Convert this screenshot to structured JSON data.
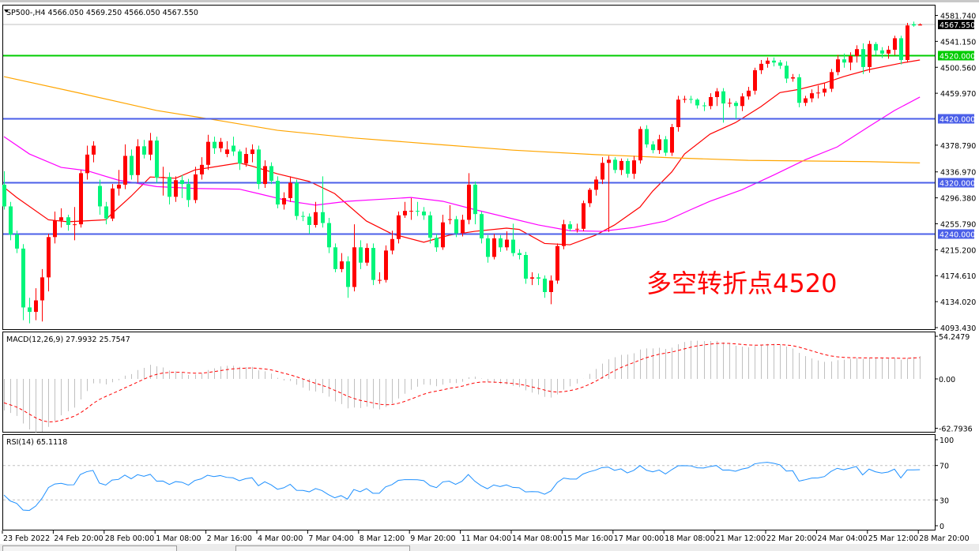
{
  "header": {
    "symbol_line": "SP500-,H4  4566.050 4569.250 4566.050 4567.550"
  },
  "annotation": {
    "text": "多空转折点4520",
    "color": "#ff0000"
  },
  "price_axis": {
    "labels": [
      "4581.740",
      "4541.150",
      "4500.560",
      "4459.970",
      "4378.790",
      "4336.970",
      "4296.380",
      "4255.790",
      "4215.200",
      "4174.610",
      "4134.020",
      "4093.430"
    ],
    "values": [
      4581.74,
      4541.15,
      4500.56,
      4459.97,
      4378.79,
      4336.97,
      4296.38,
      4255.79,
      4215.2,
      4174.61,
      4134.02,
      4093.43
    ]
  },
  "current_price": {
    "label": "4567.550",
    "value": 4567.55
  },
  "levels": [
    {
      "label": "4520.000",
      "value": 4520,
      "color": "#00cc00"
    },
    {
      "label": "4420.000",
      "value": 4420,
      "color": "#4b5fe8"
    },
    {
      "label": "4320.000",
      "value": 4320,
      "color": "#4b5fe8"
    },
    {
      "label": "4240.000",
      "value": 4240,
      "color": "#4b5fe8"
    }
  ],
  "time_axis": {
    "labels": [
      "23 Feb 2022",
      "24 Feb 20:00",
      "28 Feb 00:00",
      "1 Mar 08:00",
      "2 Mar 16:00",
      "4 Mar 00:00",
      "7 Mar 04:00",
      "8 Mar 12:00",
      "9 Mar 20:00",
      "11 Mar 04:00",
      "14 Mar 08:00",
      "15 Mar 16:00",
      "17 Mar 00:00",
      "18 Mar 08:00",
      "21 Mar 12:00",
      "22 Mar 20:00",
      "24 Mar 04:00",
      "25 Mar 12:00",
      "28 Mar 20:00"
    ],
    "bar_step": 8
  },
  "macd": {
    "label": "MACD(12,26,9) 27.9932 25.7547",
    "axis_labels": [
      "54.2479",
      "0.00",
      "-62.7936"
    ],
    "ylim": [
      -62.7936,
      54.2479
    ],
    "hist_color": "#c0c0c0",
    "signal_color": "#ff0000"
  },
  "rsi": {
    "label": "RSI(14) 65.1118",
    "axis_labels": [
      "100",
      "70",
      "30",
      "0"
    ],
    "levels": [
      70,
      30
    ],
    "color": "#1e90ff"
  },
  "chart_data": {
    "type": "candlestick",
    "symbol": "SP500-",
    "timeframe": "H4",
    "ylim": [
      4093.43,
      4581.74
    ],
    "up_color": "#ff0000",
    "down_color": "#00f57a",
    "candles": [
      [
        4317,
        4338,
        4278,
        4283
      ],
      [
        4283,
        4290,
        4230,
        4239
      ],
      [
        4239,
        4245,
        4210,
        4217
      ],
      [
        4217,
        4224,
        4105,
        4125
      ],
      [
        4125,
        4140,
        4100,
        4118
      ],
      [
        4118,
        4155,
        4105,
        4136
      ],
      [
        4136,
        4185,
        4103,
        4172
      ],
      [
        4172,
        4240,
        4150,
        4235
      ],
      [
        4235,
        4275,
        4225,
        4261
      ],
      [
        4261,
        4280,
        4250,
        4266
      ],
      [
        4266,
        4270,
        4245,
        4254
      ],
      [
        4254,
        4282,
        4230,
        4255
      ],
      [
        4255,
        4340,
        4250,
        4335
      ],
      [
        4335,
        4378,
        4325,
        4364
      ],
      [
        4364,
        4385,
        4352,
        4378
      ],
      [
        4315,
        4325,
        4270,
        4283
      ],
      [
        4283,
        4290,
        4255,
        4264
      ],
      [
        4264,
        4318,
        4260,
        4311
      ],
      [
        4311,
        4340,
        4300,
        4317
      ],
      [
        4317,
        4380,
        4310,
        4362
      ],
      [
        4362,
        4372,
        4325,
        4332
      ],
      [
        4332,
        4388,
        4320,
        4377
      ],
      [
        4377,
        4387,
        4358,
        4364
      ],
      [
        4364,
        4398,
        4355,
        4386
      ],
      [
        4386,
        4392,
        4320,
        4328
      ],
      [
        4329,
        4345,
        4300,
        4329
      ],
      [
        4329,
        4336,
        4286,
        4298
      ],
      [
        4298,
        4330,
        4290,
        4324
      ],
      [
        4324,
        4332,
        4296,
        4318
      ],
      [
        4318,
        4326,
        4282,
        4293
      ],
      [
        4293,
        4345,
        4288,
        4333
      ],
      [
        4333,
        4360,
        4325,
        4348
      ],
      [
        4348,
        4395,
        4340,
        4384
      ],
      [
        4384,
        4392,
        4365,
        4374
      ],
      [
        4374,
        4390,
        4368,
        4384
      ],
      [
        4365,
        4385,
        4360,
        4372
      ],
      [
        4378,
        4392,
        4362,
        4369
      ],
      [
        4369,
        4372,
        4340,
        4350
      ],
      [
        4350,
        4375,
        4345,
        4365
      ],
      [
        4365,
        4380,
        4352,
        4372
      ],
      [
        4372,
        4378,
        4310,
        4318
      ],
      [
        4318,
        4355,
        4312,
        4346
      ],
      [
        4346,
        4352,
        4318,
        4323
      ],
      [
        4323,
        4330,
        4280,
        4286
      ],
      [
        4286,
        4305,
        4278,
        4296
      ],
      [
        4296,
        4330,
        4290,
        4320
      ],
      [
        4320,
        4325,
        4262,
        4268
      ],
      [
        4268,
        4275,
        4260,
        4267
      ],
      [
        4267,
        4272,
        4240,
        4254
      ],
      [
        4254,
        4290,
        4250,
        4274
      ],
      [
        4274,
        4330,
        4250,
        4257
      ],
      [
        4257,
        4265,
        4210,
        4219
      ],
      [
        4219,
        4225,
        4180,
        4185
      ],
      [
        4185,
        4210,
        4180,
        4197
      ],
      [
        4197,
        4205,
        4140,
        4157
      ],
      [
        4157,
        4255,
        4150,
        4219
      ],
      [
        4219,
        4230,
        4185,
        4195
      ],
      [
        4195,
        4225,
        4190,
        4218
      ],
      [
        4218,
        4225,
        4160,
        4168
      ],
      [
        4168,
        4180,
        4162,
        4168
      ],
      [
        4168,
        4222,
        4164,
        4214
      ],
      [
        4214,
        4245,
        4208,
        4232
      ],
      [
        4232,
        4275,
        4225,
        4269
      ],
      [
        4269,
        4290,
        4265,
        4276
      ],
      [
        4276,
        4296,
        4262,
        4276
      ],
      [
        4276,
        4290,
        4268,
        4275
      ],
      [
        4275,
        4282,
        4262,
        4269
      ],
      [
        4269,
        4275,
        4225,
        4234
      ],
      [
        4234,
        4240,
        4212,
        4219
      ],
      [
        4219,
        4270,
        4215,
        4258
      ],
      [
        4263,
        4285,
        4255,
        4263
      ],
      [
        4263,
        4268,
        4235,
        4241
      ],
      [
        4241,
        4270,
        4236,
        4262
      ],
      [
        4262,
        4335,
        4255,
        4317
      ],
      [
        4317,
        4322,
        4255,
        4271
      ],
      [
        4271,
        4275,
        4225,
        4233
      ],
      [
        4233,
        4238,
        4195,
        4204
      ],
      [
        4204,
        4240,
        4200,
        4233
      ],
      [
        4233,
        4238,
        4212,
        4219
      ],
      [
        4219,
        4244,
        4214,
        4231
      ],
      [
        4231,
        4256,
        4205,
        4210
      ],
      [
        4210,
        4216,
        4200,
        4207
      ],
      [
        4207,
        4212,
        4162,
        4170
      ],
      [
        4170,
        4180,
        4160,
        4172
      ],
      [
        4172,
        4178,
        4160,
        4170
      ],
      [
        4170,
        4175,
        4140,
        4149
      ],
      [
        4149,
        4175,
        4130,
        4167
      ],
      [
        4167,
        4225,
        4162,
        4221
      ],
      [
        4221,
        4262,
        4216,
        4255
      ],
      [
        4255,
        4260,
        4244,
        4248
      ],
      [
        4248,
        4256,
        4242,
        4248
      ],
      [
        4248,
        4292,
        4244,
        4288
      ],
      [
        4288,
        4312,
        4282,
        4309
      ],
      [
        4309,
        4330,
        4300,
        4325
      ],
      [
        4325,
        4360,
        4318,
        4351
      ],
      [
        4351,
        4362,
        4243,
        4356
      ],
      [
        4356,
        4360,
        4335,
        4340
      ],
      [
        4340,
        4358,
        4332,
        4354
      ],
      [
        4354,
        4358,
        4328,
        4334
      ],
      [
        4334,
        4362,
        4326,
        4355
      ],
      [
        4355,
        4408,
        4350,
        4404
      ],
      [
        4404,
        4410,
        4375,
        4380
      ],
      [
        4380,
        4385,
        4366,
        4371
      ],
      [
        4371,
        4395,
        4365,
        4388
      ],
      [
        4388,
        4393,
        4362,
        4367
      ],
      [
        4367,
        4412,
        4362,
        4407
      ],
      [
        4407,
        4456,
        4400,
        4450
      ],
      [
        4450,
        4456,
        4445,
        4451
      ],
      [
        4451,
        4456,
        4444,
        4450
      ],
      [
        4450,
        4452,
        4436,
        4441
      ],
      [
        4441,
        4446,
        4432,
        4440
      ],
      [
        4440,
        4460,
        4435,
        4454
      ],
      [
        4454,
        4468,
        4440,
        4463
      ],
      [
        4463,
        4468,
        4414,
        4444
      ],
      [
        4444,
        4452,
        4438,
        4445
      ],
      [
        4445,
        4448,
        4420,
        4440
      ],
      [
        4440,
        4460,
        4432,
        4455
      ],
      [
        4455,
        4470,
        4450,
        4464
      ],
      [
        4464,
        4500,
        4458,
        4496
      ],
      [
        4496,
        4512,
        4490,
        4506
      ],
      [
        4506,
        4516,
        4500,
        4511
      ],
      [
        4511,
        4516,
        4502,
        4508
      ],
      [
        4508,
        4512,
        4498,
        4503
      ],
      [
        4503,
        4510,
        4476,
        4483
      ],
      [
        4483,
        4490,
        4478,
        4485
      ],
      [
        4485,
        4490,
        4438,
        4445
      ],
      [
        4445,
        4456,
        4440,
        4452
      ],
      [
        4452,
        4466,
        4446,
        4460
      ],
      [
        4460,
        4472,
        4452,
        4461
      ],
      [
        4461,
        4476,
        4455,
        4467
      ],
      [
        4467,
        4498,
        4462,
        4493
      ],
      [
        4493,
        4520,
        4488,
        4513
      ],
      [
        4513,
        4522,
        4500,
        4508
      ],
      [
        4508,
        4524,
        4496,
        4518
      ],
      [
        4518,
        4535,
        4508,
        4529
      ],
      [
        4529,
        4538,
        4490,
        4501
      ],
      [
        4501,
        4542,
        4492,
        4537
      ],
      [
        4537,
        4540,
        4520,
        4527
      ],
      [
        4527,
        4532,
        4515,
        4522
      ],
      [
        4522,
        4534,
        4514,
        4528
      ],
      [
        4528,
        4550,
        4520,
        4546
      ],
      [
        4546,
        4550,
        4505,
        4512
      ],
      [
        4512,
        4570,
        4508,
        4566
      ],
      [
        4568,
        4572,
        4564,
        4566
      ],
      [
        4566.05,
        4569.25,
        4566.05,
        4567.55
      ]
    ],
    "ma_lines": [
      {
        "color": "#ff0000",
        "points": [
          [
            0,
            4313
          ],
          [
            2,
            4297
          ],
          [
            7,
            4262
          ],
          [
            10,
            4259
          ],
          [
            12,
            4260
          ],
          [
            16,
            4262
          ],
          [
            17,
            4272
          ],
          [
            20,
            4299
          ],
          [
            23,
            4329
          ],
          [
            27,
            4327
          ],
          [
            30,
            4340
          ],
          [
            37,
            4351
          ],
          [
            39,
            4346
          ],
          [
            43,
            4334
          ],
          [
            48,
            4322
          ],
          [
            52,
            4303
          ],
          [
            57,
            4260
          ],
          [
            61,
            4240
          ],
          [
            66,
            4227
          ],
          [
            70,
            4238
          ],
          [
            74,
            4244
          ],
          [
            79,
            4249
          ],
          [
            81,
            4247
          ],
          [
            85,
            4225
          ],
          [
            89,
            4223
          ],
          [
            93,
            4238
          ],
          [
            96,
            4254
          ],
          [
            100,
            4282
          ],
          [
            102,
            4307
          ],
          [
            105,
            4337
          ],
          [
            107,
            4365
          ],
          [
            111,
            4396
          ],
          [
            115,
            4414
          ],
          [
            119,
            4439
          ],
          [
            122,
            4461
          ],
          [
            125,
            4466
          ],
          [
            129,
            4476
          ],
          [
            132,
            4486
          ],
          [
            136,
            4497
          ],
          [
            141,
            4507
          ],
          [
            144,
            4512
          ]
        ]
      },
      {
        "color": "#ff00ff",
        "points": [
          [
            0,
            4392
          ],
          [
            4,
            4365
          ],
          [
            9,
            4344
          ],
          [
            13,
            4339
          ],
          [
            18,
            4324
          ],
          [
            24,
            4314
          ],
          [
            30,
            4311
          ],
          [
            37,
            4310
          ],
          [
            40,
            4303
          ],
          [
            45,
            4291
          ],
          [
            49,
            4285
          ],
          [
            54,
            4291
          ],
          [
            59,
            4294
          ],
          [
            64,
            4297
          ],
          [
            69,
            4291
          ],
          [
            74,
            4278
          ],
          [
            79,
            4266
          ],
          [
            84,
            4254
          ],
          [
            89,
            4245
          ],
          [
            94,
            4244
          ],
          [
            99,
            4250
          ],
          [
            104,
            4260
          ],
          [
            108,
            4278
          ],
          [
            111,
            4291
          ],
          [
            116,
            4309
          ],
          [
            121,
            4332
          ],
          [
            126,
            4356
          ],
          [
            131,
            4376
          ],
          [
            136,
            4408
          ],
          [
            140,
            4433
          ],
          [
            144,
            4454
          ]
        ]
      },
      {
        "color": "#ffa500",
        "points": [
          [
            0,
            4486
          ],
          [
            12,
            4460
          ],
          [
            24,
            4433
          ],
          [
            34,
            4417
          ],
          [
            43,
            4402
          ],
          [
            55,
            4390
          ],
          [
            68,
            4380
          ],
          [
            80,
            4371
          ],
          [
            93,
            4364
          ],
          [
            105,
            4359
          ],
          [
            117,
            4355
          ],
          [
            136,
            4353
          ],
          [
            144,
            4351
          ]
        ]
      }
    ]
  }
}
